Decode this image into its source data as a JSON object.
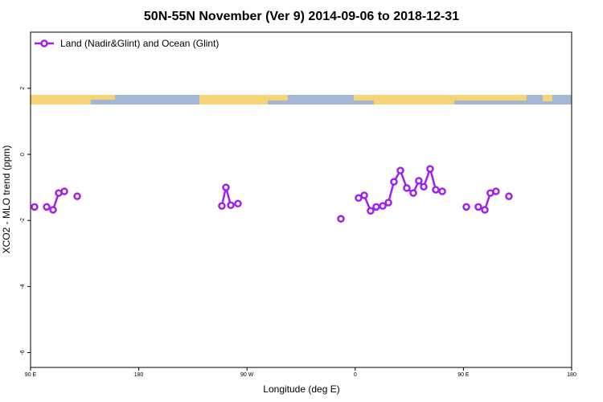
{
  "chart_data": {
    "type": "line",
    "title": "50N-55N November (Ver 9)   2014-09-06 to 2018-12-31",
    "xlabel": "Longitude (deg E)",
    "ylabel": "XCO2 - MLO trend (ppm)",
    "x": [
      93.3,
      null,
      103.4,
      108.7,
      113.4,
      118.1,
      null,
      128.8,
      null,
      249.1,
      252.5,
      256.5,
      null,
      262.5,
      null,
      348.1,
      null,
      362.8,
      367.5,
      372.8,
      377.5,
      382.9,
      387.6,
      392.2,
      397.6,
      402.9,
      408.3,
      412.9,
      417.0,
      422.3,
      427.0,
      432.4,
      null,
      452.4,
      null,
      462.4,
      467.8,
      472.4,
      477.1,
      null,
      487.8
    ],
    "series": [
      {
        "name": "Land (Nadir&Glint) and Ocean (Glint)",
        "color": "#a020f0",
        "values": [
          -1.59,
          null,
          -1.59,
          -1.68,
          -1.17,
          -1.12,
          null,
          -1.27,
          null,
          -1.56,
          -1.0,
          -1.54,
          null,
          -1.49,
          null,
          -1.95,
          null,
          -1.32,
          -1.24,
          -1.71,
          -1.59,
          -1.56,
          -1.46,
          -0.83,
          -0.49,
          -1.02,
          -1.17,
          -0.8,
          -0.98,
          -0.44,
          -1.07,
          -1.12,
          null,
          -1.59,
          null,
          -1.59,
          -1.68,
          -1.17,
          -1.12,
          null,
          -1.27
        ]
      }
    ],
    "xlim": [
      90,
      540
    ],
    "xticks": [
      {
        "value": 90,
        "label": "90 E"
      },
      180,
      {
        "value": 270,
        "label": "90 W"
      },
      {
        "value": 360,
        "label": "0"
      },
      {
        "value": 450,
        "label": "90 E"
      },
      {
        "value": 540,
        "label": "180"
      }
    ],
    "ylim": [
      -6.45,
      3.7
    ],
    "yticks": [
      -6,
      -4,
      -2,
      0,
      2
    ],
    "legend": "top-left"
  }
}
